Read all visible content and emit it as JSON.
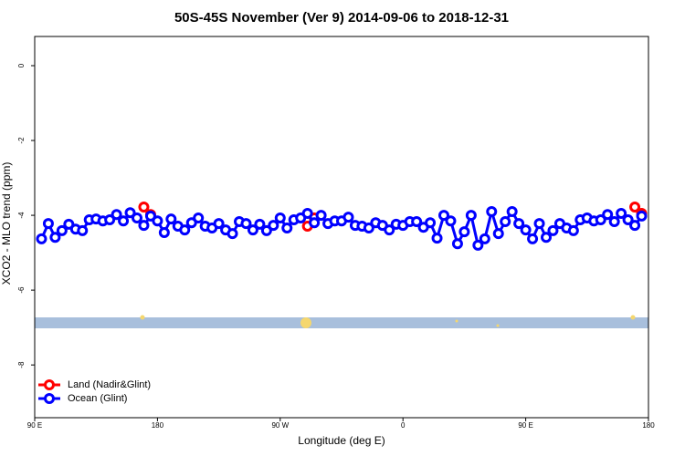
{
  "chart_data": {
    "type": "line",
    "title": "50S-45S November (Ver 9)   2014-09-06 to 2018-12-31",
    "x_label": "Longitude (deg E)",
    "y_label": "XCO2 - MLO trend (ppm)",
    "xlim": [
      90,
      540
    ],
    "ylim": [
      -9.41,
      0.78
    ],
    "xticks": [
      {
        "value": 90,
        "label": "90 E"
      },
      {
        "value": 180,
        "label": "180"
      },
      {
        "value": 270,
        "label": "90 W"
      },
      {
        "value": 360,
        "label": "0"
      },
      {
        "value": 450,
        "label": "90 E"
      },
      {
        "value": 540,
        "label": "180"
      }
    ],
    "yticks": [
      0,
      -2,
      -4,
      -6,
      -8
    ],
    "legend": "bottom-left",
    "series": [
      {
        "name": "Land (Nadir&Glint)",
        "color": "#ff0000",
        "x": [
          170,
          175,
          null,
          290,
          295,
          null,
          530,
          535
        ],
        "values": [
          -3.78,
          -3.98,
          null,
          -4.29,
          -4.07,
          null,
          -3.78,
          -3.95
        ]
      },
      {
        "name": "Ocean (Glint)",
        "color": "#0000ff",
        "x": [
          95,
          100,
          105,
          110,
          115,
          120,
          125,
          130,
          135,
          140,
          145,
          150,
          155,
          160,
          165,
          170,
          175,
          180,
          185,
          190,
          195,
          200,
          205,
          210,
          215,
          220,
          225,
          230,
          235,
          240,
          245,
          250,
          255,
          260,
          265,
          270,
          275,
          280,
          285,
          290,
          295,
          300,
          305,
          310,
          315,
          320,
          325,
          330,
          335,
          340,
          345,
          350,
          355,
          360,
          365,
          370,
          375,
          380,
          385,
          390,
          395,
          400,
          405,
          410,
          415,
          420,
          425,
          430,
          435,
          440,
          445,
          450,
          455,
          460,
          465,
          470,
          475,
          480,
          485,
          490,
          495,
          500,
          505,
          510,
          515,
          520,
          525,
          530,
          535
        ],
        "values": [
          -4.63,
          -4.22,
          -4.59,
          -4.41,
          -4.24,
          -4.37,
          -4.41,
          -4.12,
          -4.1,
          -4.15,
          -4.12,
          -3.98,
          -4.15,
          -3.93,
          -4.07,
          -4.27,
          -4.02,
          -4.15,
          -4.46,
          -4.1,
          -4.29,
          -4.39,
          -4.2,
          -4.07,
          -4.29,
          -4.34,
          -4.22,
          -4.39,
          -4.49,
          -4.17,
          -4.22,
          -4.39,
          -4.24,
          -4.41,
          -4.27,
          -4.07,
          -4.34,
          -4.12,
          -4.07,
          -3.95,
          -4.2,
          -4.0,
          -4.22,
          -4.15,
          -4.15,
          -4.05,
          -4.27,
          -4.29,
          -4.34,
          -4.2,
          -4.27,
          -4.39,
          -4.24,
          -4.27,
          -4.17,
          -4.17,
          -4.32,
          -4.2,
          -4.61,
          -4.0,
          -4.15,
          -4.76,
          -4.44,
          -4.0,
          -4.8,
          -4.63,
          -3.9,
          -4.49,
          -4.17,
          -3.9,
          -4.22,
          -4.39,
          -4.63,
          -4.22,
          -4.59,
          -4.41,
          -4.22,
          -4.34,
          -4.41,
          -4.12,
          -4.07,
          -4.15,
          -4.12,
          -3.98,
          -4.17,
          -3.95,
          -4.12,
          -4.27,
          -4.02
        ]
      }
    ]
  }
}
